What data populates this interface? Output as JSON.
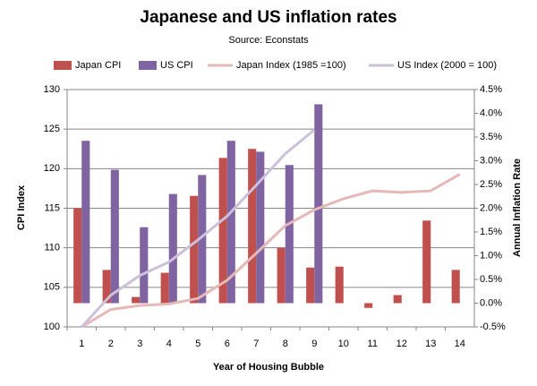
{
  "chart_data": {
    "type": "bar",
    "title": "Japanese and US inflation rates",
    "subtitle": "Source: Econstats",
    "x_label": "Year of Housing Bubble",
    "y_label": "CPI Index",
    "y2_label": "Annual Inflation Rate",
    "categories": [
      "1",
      "2",
      "3",
      "4",
      "5",
      "6",
      "7",
      "8",
      "9",
      "10",
      "11",
      "12",
      "13",
      "14"
    ],
    "series": [
      {
        "name": "Japan CPI",
        "type": "bar",
        "axis": "y2",
        "color": "#c0504d",
        "values": [
          2.0,
          0.7,
          0.13,
          0.64,
          2.26,
          3.06,
          3.25,
          1.17,
          0.75,
          0.77,
          -0.1,
          0.17,
          1.74,
          0.7
        ]
      },
      {
        "name": "US CPI",
        "type": "bar",
        "axis": "y2",
        "color": "#8064a2",
        "values": [
          3.42,
          2.81,
          1.6,
          2.3,
          2.7,
          3.42,
          3.19,
          2.91,
          4.19,
          null,
          null,
          null,
          null,
          null
        ]
      },
      {
        "name": "Japan Index (1985 =100)",
        "type": "line",
        "color": "#e6b9b8",
        "values": [
          100,
          102.2,
          102.7,
          102.9,
          103.6,
          105.9,
          109.3,
          112.8,
          114.8,
          116.2,
          117.2,
          117.0,
          117.2,
          119.3
        ]
      },
      {
        "name": "US Index (2000 = 100)",
        "type": "line",
        "color": "#ccc1da",
        "values": [
          100,
          104.0,
          106.5,
          108.2,
          111.0,
          114.0,
          117.9,
          121.9,
          124.9,
          null,
          null,
          null,
          null,
          null
        ]
      }
    ],
    "ylim": [
      100,
      130
    ],
    "yticks": [
      100,
      105,
      110,
      115,
      120,
      125,
      130
    ],
    "y2lim": [
      -0.5,
      4.5
    ],
    "y2ticks": [
      {
        "value": -0.5,
        "label": "-0.5%"
      },
      {
        "value": 0,
        "label": "0.0%"
      },
      {
        "value": 0.5,
        "label": "0.5%"
      },
      {
        "value": 1,
        "label": "1.0%"
      },
      {
        "value": 1.5,
        "label": "1.5%"
      },
      {
        "value": 2,
        "label": "2.0%"
      },
      {
        "value": 2.5,
        "label": "2.5%"
      },
      {
        "value": 3,
        "label": "3.0%"
      },
      {
        "value": 3.5,
        "label": "3.5%"
      },
      {
        "value": 4,
        "label": "4.0%"
      },
      {
        "value": 4.5,
        "label": "4.5%"
      }
    ],
    "grid": true,
    "legend": "top"
  }
}
